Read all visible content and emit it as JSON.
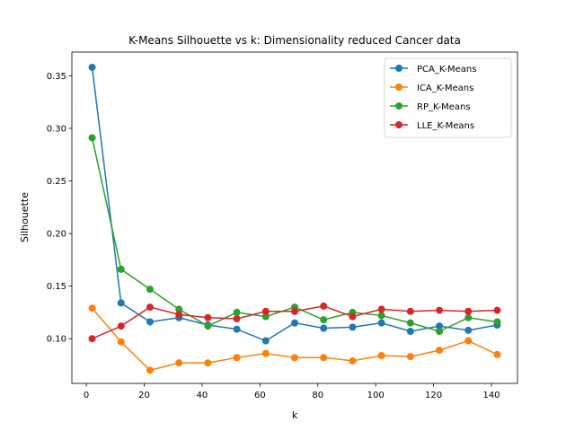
{
  "chart_data": {
    "type": "line",
    "title": "K-Means Silhouette vs k: Dimensionality reduced Cancer data",
    "xlabel": "k",
    "ylabel": "Silhouette",
    "xlim": [
      -5,
      149
    ],
    "ylim": [
      0.0575,
      0.3725
    ],
    "xticks": [
      0,
      20,
      40,
      60,
      80,
      100,
      120,
      140
    ],
    "yticks": [
      0.1,
      0.15,
      0.2,
      0.25,
      0.3,
      0.35
    ],
    "grid": false,
    "legend": "top-right",
    "x": [
      2,
      12,
      22,
      32,
      42,
      52,
      62,
      72,
      82,
      92,
      102,
      112,
      122,
      132,
      142
    ],
    "series": [
      {
        "name": "PCA_K-Means",
        "color": "#1f77b4",
        "values": [
          0.358,
          0.134,
          0.116,
          0.12,
          0.113,
          0.109,
          0.098,
          0.115,
          0.11,
          0.111,
          0.115,
          0.107,
          0.112,
          0.108,
          0.113
        ]
      },
      {
        "name": "ICA_K-Means",
        "color": "#ff7f0e",
        "values": [
          0.129,
          0.097,
          0.07,
          0.077,
          0.077,
          0.082,
          0.086,
          0.082,
          0.082,
          0.079,
          0.084,
          0.083,
          0.089,
          0.098,
          0.085
        ]
      },
      {
        "name": "RP_K-Means",
        "color": "#2ca02c",
        "values": [
          0.291,
          0.166,
          0.147,
          0.128,
          0.112,
          0.125,
          0.121,
          0.13,
          0.118,
          0.125,
          0.122,
          0.115,
          0.107,
          0.12,
          0.116
        ]
      },
      {
        "name": "LLE_K-Means",
        "color": "#d62728",
        "values": [
          0.1,
          0.112,
          0.13,
          0.123,
          0.12,
          0.119,
          0.126,
          0.126,
          0.131,
          0.121,
          0.128,
          0.126,
          0.127,
          0.126,
          0.127
        ]
      }
    ]
  }
}
